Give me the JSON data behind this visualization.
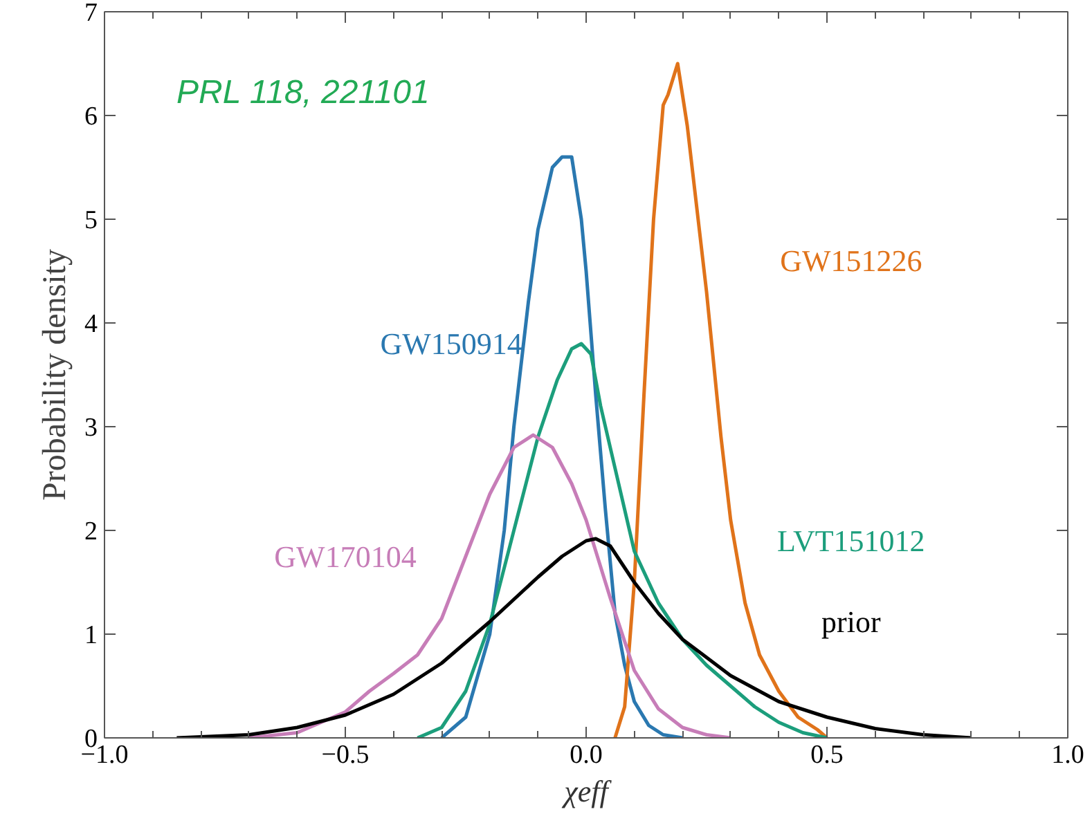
{
  "chart_data": {
    "type": "line",
    "xlabel": "χeff",
    "ylabel": "Probability density",
    "xlim": [
      -1.0,
      1.0
    ],
    "ylim": [
      0,
      7
    ],
    "xticks": [
      {
        "value": -1.0,
        "label": "−1.0"
      },
      {
        "value": -0.5,
        "label": "−0.5"
      },
      {
        "value": 0.0,
        "label": "0.0"
      },
      {
        "value": 0.5,
        "label": "0.5"
      },
      {
        "value": 1.0,
        "label": "1.0"
      }
    ],
    "yticks": [
      0,
      1,
      2,
      3,
      4,
      5,
      6,
      7
    ],
    "grid": false,
    "line_style": "solid",
    "annotations": [
      "PRL 118, 221101"
    ],
    "series": [
      {
        "name": "GW150914",
        "color": "#2a78b0",
        "x": [
          -0.3,
          -0.25,
          -0.2,
          -0.17,
          -0.15,
          -0.12,
          -0.1,
          -0.07,
          -0.05,
          -0.03,
          -0.01,
          0.0,
          0.02,
          0.04,
          0.06,
          0.08,
          0.1,
          0.13,
          0.16,
          0.2
        ],
        "values": [
          0,
          0.2,
          1.0,
          2.0,
          3.0,
          4.2,
          4.9,
          5.5,
          5.6,
          5.6,
          5.0,
          4.5,
          3.3,
          2.2,
          1.2,
          0.7,
          0.35,
          0.12,
          0.03,
          0
        ]
      },
      {
        "name": "GW151226",
        "color": "#e0731a",
        "x": [
          0.06,
          0.08,
          0.1,
          0.12,
          0.14,
          0.16,
          0.17,
          0.19,
          0.21,
          0.23,
          0.25,
          0.28,
          0.3,
          0.33,
          0.36,
          0.4,
          0.44,
          0.48,
          0.5
        ],
        "values": [
          0,
          0.3,
          1.5,
          3.3,
          5.0,
          6.1,
          6.2,
          6.5,
          5.9,
          5.1,
          4.3,
          2.9,
          2.1,
          1.3,
          0.8,
          0.45,
          0.2,
          0.08,
          0
        ]
      },
      {
        "name": "LVT151012",
        "color": "#1c9e7c",
        "x": [
          -0.35,
          -0.3,
          -0.25,
          -0.2,
          -0.15,
          -0.1,
          -0.06,
          -0.03,
          -0.01,
          0.01,
          0.03,
          0.06,
          0.1,
          0.15,
          0.2,
          0.25,
          0.3,
          0.35,
          0.4,
          0.45,
          0.5
        ],
        "values": [
          0,
          0.1,
          0.45,
          1.1,
          2.0,
          2.9,
          3.45,
          3.75,
          3.8,
          3.7,
          3.2,
          2.6,
          1.8,
          1.3,
          0.95,
          0.7,
          0.5,
          0.3,
          0.15,
          0.05,
          0
        ]
      },
      {
        "name": "GW170104",
        "color": "#c77db8",
        "x": [
          -0.7,
          -0.6,
          -0.5,
          -0.45,
          -0.4,
          -0.35,
          -0.3,
          -0.25,
          -0.2,
          -0.15,
          -0.11,
          -0.07,
          -0.03,
          0.0,
          0.05,
          0.1,
          0.15,
          0.2,
          0.25,
          0.3
        ],
        "values": [
          0,
          0.05,
          0.25,
          0.45,
          0.62,
          0.8,
          1.15,
          1.75,
          2.35,
          2.8,
          2.92,
          2.8,
          2.45,
          2.1,
          1.35,
          0.65,
          0.28,
          0.1,
          0.03,
          0
        ]
      },
      {
        "name": "prior",
        "color": "#000000",
        "x": [
          -0.85,
          -0.7,
          -0.6,
          -0.5,
          -0.4,
          -0.3,
          -0.2,
          -0.1,
          -0.05,
          0.0,
          0.02,
          0.05,
          0.1,
          0.15,
          0.2,
          0.3,
          0.4,
          0.5,
          0.6,
          0.7,
          0.8
        ],
        "values": [
          0,
          0.03,
          0.1,
          0.22,
          0.42,
          0.72,
          1.12,
          1.55,
          1.75,
          1.9,
          1.92,
          1.85,
          1.5,
          1.2,
          0.95,
          0.6,
          0.35,
          0.2,
          0.09,
          0.03,
          0
        ]
      }
    ]
  }
}
